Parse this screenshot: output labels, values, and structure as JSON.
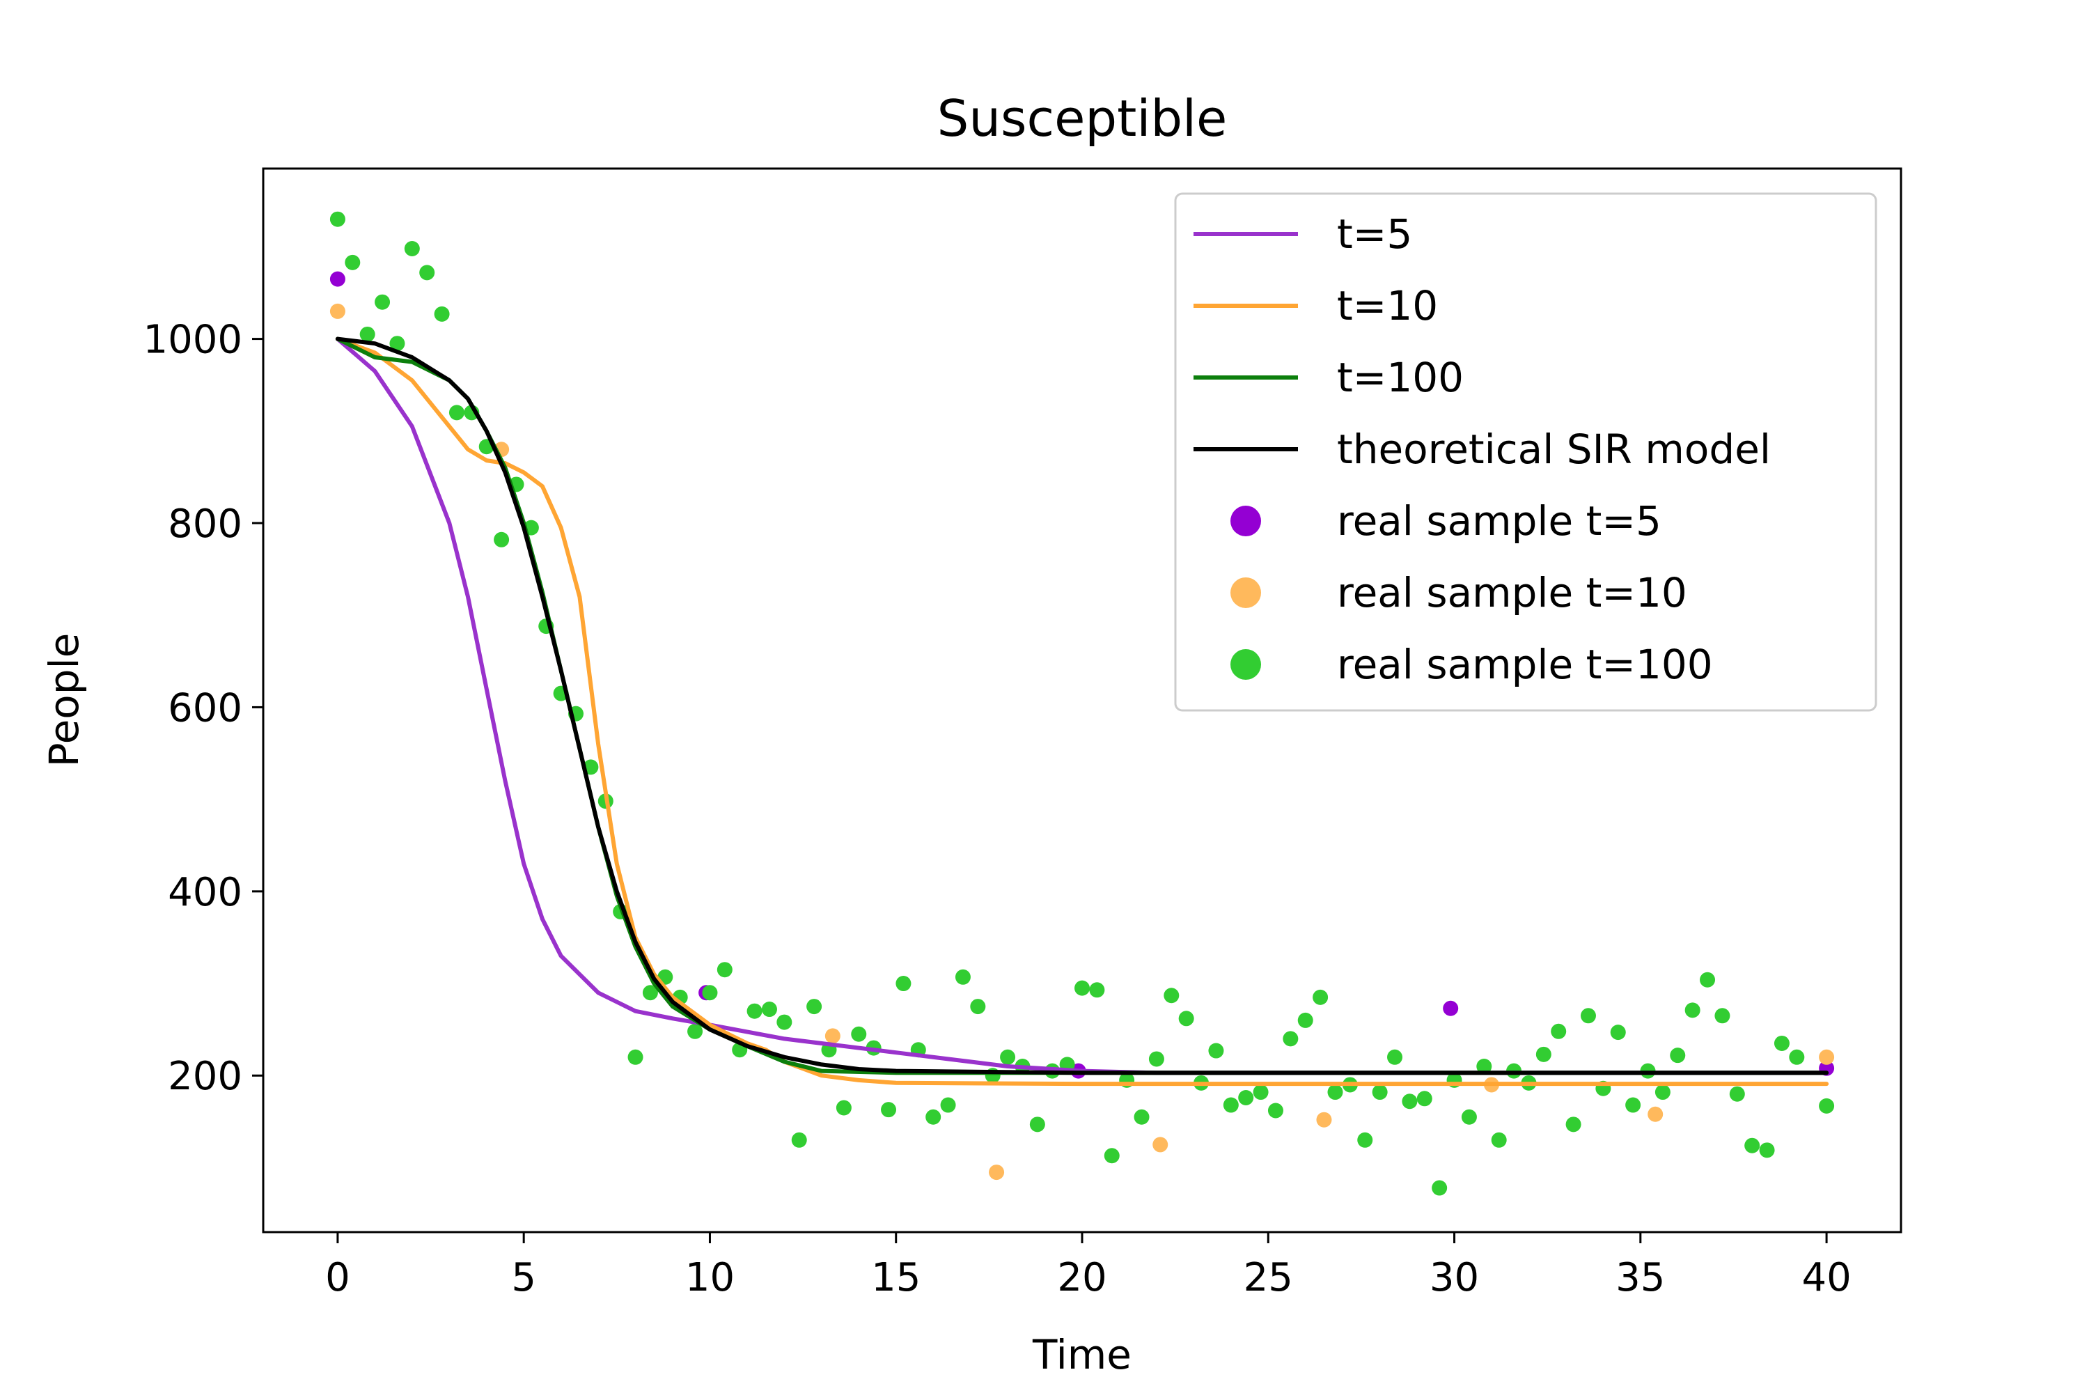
{
  "chart_data": {
    "type": "line",
    "title": "Susceptible",
    "xlabel": "Time",
    "ylabel": "People",
    "xlim": [
      -2,
      42
    ],
    "ylim": [
      30,
      1185
    ],
    "xticks": [
      0,
      5,
      10,
      15,
      20,
      25,
      30,
      35,
      40
    ],
    "yticks": [
      200,
      400,
      600,
      800,
      1000
    ],
    "grid": false,
    "legend_position": "top-right",
    "series": [
      {
        "name": "t=5",
        "kind": "line",
        "color": "#9932CC",
        "points": [
          [
            0,
            1000
          ],
          [
            1,
            965
          ],
          [
            2,
            905
          ],
          [
            3,
            800
          ],
          [
            3.5,
            720
          ],
          [
            4,
            620
          ],
          [
            4.5,
            520
          ],
          [
            5,
            430
          ],
          [
            5.5,
            370
          ],
          [
            6,
            330
          ],
          [
            7,
            290
          ],
          [
            8,
            270
          ],
          [
            9,
            262
          ],
          [
            10,
            255
          ],
          [
            12,
            240
          ],
          [
            15,
            225
          ],
          [
            18,
            210
          ],
          [
            20,
            205
          ],
          [
            22,
            203
          ],
          [
            25,
            203
          ],
          [
            30,
            203
          ],
          [
            35,
            203
          ],
          [
            40,
            203
          ]
        ]
      },
      {
        "name": "t=10",
        "kind": "line",
        "color": "#FFA533",
        "points": [
          [
            0,
            1000
          ],
          [
            1,
            985
          ],
          [
            2,
            955
          ],
          [
            3,
            905
          ],
          [
            3.5,
            880
          ],
          [
            4,
            868
          ],
          [
            4.5,
            865
          ],
          [
            5,
            855
          ],
          [
            5.5,
            840
          ],
          [
            6,
            795
          ],
          [
            6.5,
            720
          ],
          [
            7,
            560
          ],
          [
            7.5,
            430
          ],
          [
            8,
            350
          ],
          [
            8.5,
            310
          ],
          [
            9,
            285
          ],
          [
            10,
            255
          ],
          [
            10.5,
            245
          ],
          [
            11,
            235
          ],
          [
            11.5,
            228
          ],
          [
            12,
            215
          ],
          [
            13,
            200
          ],
          [
            14,
            195
          ],
          [
            15,
            192
          ],
          [
            20,
            191
          ],
          [
            25,
            191
          ],
          [
            30,
            191
          ],
          [
            35,
            191
          ],
          [
            40,
            191
          ]
        ]
      },
      {
        "name": "t=100",
        "kind": "line",
        "color": "#0C7F0C",
        "points": [
          [
            0,
            1000
          ],
          [
            1,
            980
          ],
          [
            2,
            975
          ],
          [
            3,
            955
          ],
          [
            3.5,
            935
          ],
          [
            4,
            900
          ],
          [
            4.5,
            860
          ],
          [
            5,
            800
          ],
          [
            5.5,
            725
          ],
          [
            6,
            640
          ],
          [
            6.5,
            555
          ],
          [
            7,
            470
          ],
          [
            7.5,
            395
          ],
          [
            8,
            340
          ],
          [
            8.5,
            300
          ],
          [
            9,
            275
          ],
          [
            10,
            250
          ],
          [
            11,
            232
          ],
          [
            12,
            215
          ],
          [
            13,
            205
          ],
          [
            15,
            203
          ],
          [
            20,
            203
          ],
          [
            25,
            203
          ],
          [
            30,
            203
          ],
          [
            35,
            203
          ],
          [
            40,
            203
          ]
        ]
      },
      {
        "name": "theoretical SIR model",
        "kind": "line",
        "color": "#000000",
        "points": [
          [
            0,
            1000
          ],
          [
            1,
            995
          ],
          [
            2,
            980
          ],
          [
            3,
            955
          ],
          [
            3.5,
            935
          ],
          [
            4,
            900
          ],
          [
            4.5,
            855
          ],
          [
            5,
            795
          ],
          [
            5.5,
            720
          ],
          [
            6,
            640
          ],
          [
            6.5,
            555
          ],
          [
            7,
            470
          ],
          [
            7.5,
            400
          ],
          [
            8,
            345
          ],
          [
            8.5,
            305
          ],
          [
            9,
            280
          ],
          [
            10,
            250
          ],
          [
            11,
            232
          ],
          [
            12,
            220
          ],
          [
            13,
            212
          ],
          [
            14,
            207
          ],
          [
            15,
            205
          ],
          [
            20,
            203
          ],
          [
            25,
            203
          ],
          [
            30,
            203
          ],
          [
            35,
            203
          ],
          [
            40,
            203
          ]
        ]
      },
      {
        "name": "real sample t=5",
        "kind": "scatter",
        "color": "#9400D3",
        "points": [
          [
            0,
            1065
          ],
          [
            9.9,
            290
          ],
          [
            19.9,
            205
          ],
          [
            29.9,
            273
          ],
          [
            40,
            208
          ]
        ]
      },
      {
        "name": "real sample t=10",
        "kind": "scatter",
        "color": "#FFB95C",
        "points": [
          [
            0,
            1030
          ],
          [
            4.4,
            880
          ],
          [
            13.3,
            243
          ],
          [
            17.7,
            95
          ],
          [
            22.1,
            125
          ],
          [
            26.5,
            152
          ],
          [
            31,
            190
          ],
          [
            35.4,
            158
          ],
          [
            40,
            220
          ]
        ]
      },
      {
        "name": "real sample t=100",
        "kind": "scatter",
        "color": "#32CD32",
        "points": [
          [
            0,
            1130
          ],
          [
            0.4,
            1083
          ],
          [
            0.8,
            1005
          ],
          [
            1.2,
            1040
          ],
          [
            1.6,
            995
          ],
          [
            2,
            1098
          ],
          [
            2.4,
            1072
          ],
          [
            2.8,
            1027
          ],
          [
            3.2,
            920
          ],
          [
            3.6,
            920
          ],
          [
            4,
            883
          ],
          [
            4.4,
            782
          ],
          [
            4.8,
            842
          ],
          [
            5.2,
            795
          ],
          [
            5.6,
            688
          ],
          [
            6,
            615
          ],
          [
            6.4,
            593
          ],
          [
            6.8,
            535
          ],
          [
            7.2,
            498
          ],
          [
            7.6,
            378
          ],
          [
            8,
            220
          ],
          [
            8.4,
            290
          ],
          [
            8.8,
            307
          ],
          [
            9.2,
            285
          ],
          [
            9.6,
            248
          ],
          [
            10,
            290
          ],
          [
            10.4,
            315
          ],
          [
            10.8,
            228
          ],
          [
            11.2,
            270
          ],
          [
            11.6,
            272
          ],
          [
            12,
            258
          ],
          [
            12.4,
            130
          ],
          [
            12.8,
            275
          ],
          [
            13.2,
            228
          ],
          [
            13.6,
            165
          ],
          [
            14,
            245
          ],
          [
            14.4,
            230
          ],
          [
            14.8,
            163
          ],
          [
            15.2,
            300
          ],
          [
            15.6,
            228
          ],
          [
            16,
            155
          ],
          [
            16.4,
            168
          ],
          [
            16.8,
            307
          ],
          [
            17.2,
            275
          ],
          [
            17.6,
            200
          ],
          [
            18,
            220
          ],
          [
            18.4,
            210
          ],
          [
            18.8,
            147
          ],
          [
            19.2,
            205
          ],
          [
            19.6,
            212
          ],
          [
            20,
            295
          ],
          [
            20.4,
            293
          ],
          [
            20.8,
            113
          ],
          [
            21.2,
            195
          ],
          [
            21.6,
            155
          ],
          [
            22,
            218
          ],
          [
            22.4,
            287
          ],
          [
            22.8,
            262
          ],
          [
            23.2,
            192
          ],
          [
            23.6,
            227
          ],
          [
            24,
            168
          ],
          [
            24.4,
            176
          ],
          [
            24.8,
            182
          ],
          [
            25.2,
            162
          ],
          [
            25.6,
            240
          ],
          [
            26,
            260
          ],
          [
            26.4,
            285
          ],
          [
            26.8,
            182
          ],
          [
            27.2,
            190
          ],
          [
            27.6,
            130
          ],
          [
            28,
            182
          ],
          [
            28.4,
            220
          ],
          [
            28.8,
            172
          ],
          [
            29.2,
            175
          ],
          [
            29.6,
            78
          ],
          [
            30,
            195
          ],
          [
            30.4,
            155
          ],
          [
            30.8,
            210
          ],
          [
            31.2,
            130
          ],
          [
            31.6,
            205
          ],
          [
            32,
            192
          ],
          [
            32.4,
            223
          ],
          [
            32.8,
            248
          ],
          [
            33.2,
            147
          ],
          [
            33.6,
            265
          ],
          [
            34,
            186
          ],
          [
            34.4,
            247
          ],
          [
            34.8,
            168
          ],
          [
            35.2,
            205
          ],
          [
            35.6,
            182
          ],
          [
            36,
            222
          ],
          [
            36.4,
            271
          ],
          [
            36.8,
            304
          ],
          [
            37.2,
            265
          ],
          [
            37.6,
            180
          ],
          [
            38,
            124
          ],
          [
            38.4,
            119
          ],
          [
            38.8,
            235
          ],
          [
            39.2,
            220
          ],
          [
            40,
            167
          ]
        ]
      }
    ]
  }
}
